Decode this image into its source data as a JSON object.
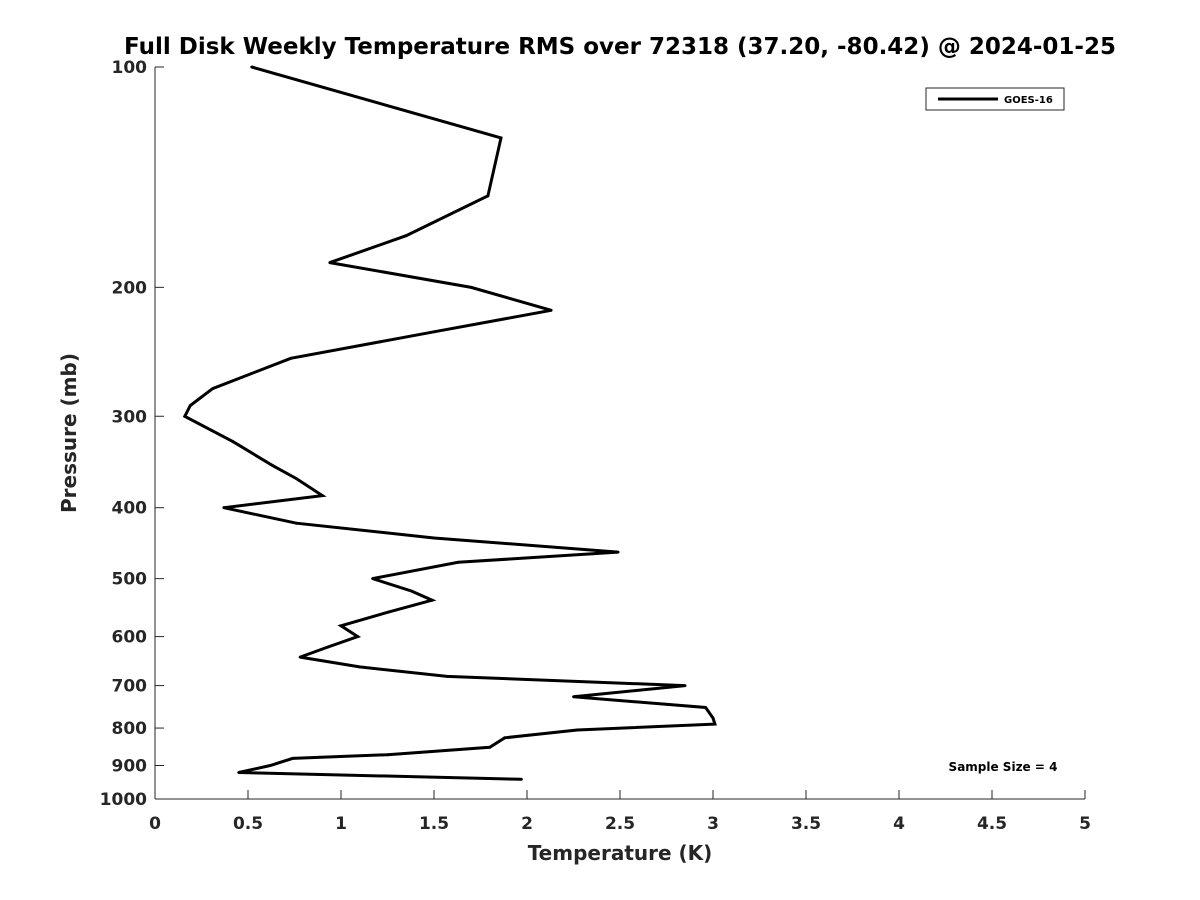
{
  "chart_data": {
    "type": "line",
    "title": "Full Disk Weekly Temperature RMS over 72318 (37.20, -80.42) @ 2024-01-25",
    "xlabel": "Temperature (K)",
    "ylabel": "Pressure (mb)",
    "xlim": [
      0,
      5
    ],
    "ylim": [
      100,
      1000
    ],
    "y_scale": "log",
    "y_reversed": true,
    "grid": false,
    "x_ticks": [
      "0",
      "0.5",
      "1",
      "1.5",
      "2",
      "2.5",
      "3",
      "3.5",
      "4",
      "4.5",
      "5"
    ],
    "y_ticks": [
      "100",
      "200",
      "300",
      "400",
      "500",
      "600",
      "700",
      "800",
      "900",
      "1000"
    ],
    "legend_position": "top-right",
    "annotation": "Sample Size = 4",
    "series": [
      {
        "name": "GOES-16",
        "color": "#000000",
        "points": [
          [
            0.52,
            100
          ],
          [
            1.86,
            125
          ],
          [
            1.79,
            150
          ],
          [
            1.35,
            170
          ],
          [
            0.94,
            185
          ],
          [
            1.7,
            200
          ],
          [
            2.13,
            215
          ],
          [
            1.5,
            230
          ],
          [
            0.73,
            250
          ],
          [
            0.31,
            275
          ],
          [
            0.19,
            290
          ],
          [
            0.16,
            300
          ],
          [
            0.42,
            325
          ],
          [
            0.63,
            350
          ],
          [
            0.76,
            365
          ],
          [
            0.9,
            385
          ],
          [
            0.37,
            400
          ],
          [
            0.76,
            420
          ],
          [
            1.5,
            440
          ],
          [
            2.49,
            460
          ],
          [
            1.63,
            475
          ],
          [
            1.17,
            500
          ],
          [
            1.38,
            520
          ],
          [
            1.49,
            535
          ],
          [
            1.26,
            555
          ],
          [
            1.0,
            580
          ],
          [
            1.09,
            600
          ],
          [
            0.93,
            620
          ],
          [
            0.78,
            640
          ],
          [
            1.1,
            660
          ],
          [
            1.57,
            680
          ],
          [
            2.85,
            700
          ],
          [
            2.25,
            725
          ],
          [
            2.96,
            750
          ],
          [
            3.0,
            775
          ],
          [
            3.01,
            790
          ],
          [
            2.27,
            805
          ],
          [
            1.88,
            825
          ],
          [
            1.8,
            850
          ],
          [
            1.25,
            870
          ],
          [
            0.74,
            880
          ],
          [
            0.62,
            900
          ],
          [
            0.45,
            920
          ],
          [
            1.97,
            940
          ]
        ]
      }
    ]
  }
}
